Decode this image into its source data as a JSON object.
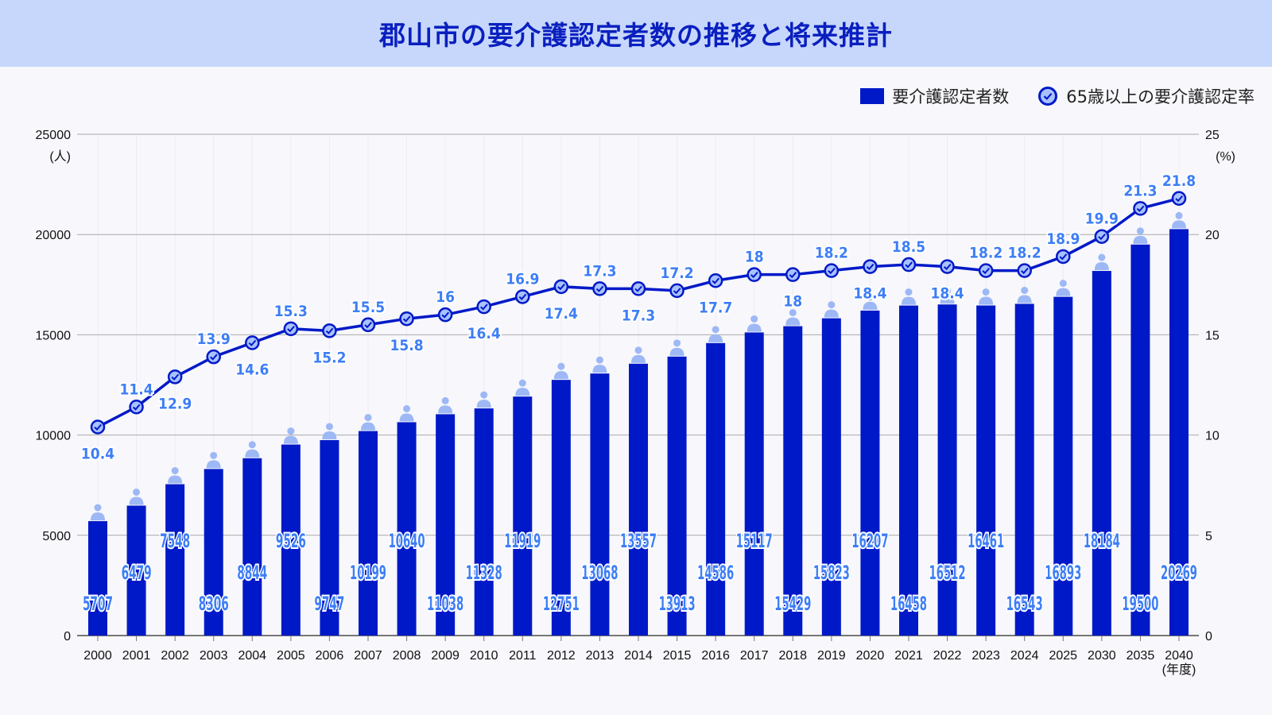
{
  "title": "郡山市の要介護認定者数の推移と将来推計",
  "legend": {
    "bar": "要介護認定者数",
    "line": "65歳以上の要介護認定率"
  },
  "colors": {
    "bar": "#0019c8",
    "line": "#0019c8",
    "marker_fill": "#a9c1ff",
    "label": "#3d7ef6",
    "person_icon": "#9db8f5"
  },
  "chart_data": {
    "type": "bar+line",
    "title": "郡山市の要介護認定者数の推移と将来推計",
    "categories": [
      "2000",
      "2001",
      "2002",
      "2003",
      "2004",
      "2005",
      "2006",
      "2007",
      "2008",
      "2009",
      "2010",
      "2011",
      "2012",
      "2013",
      "2014",
      "2015",
      "2016",
      "2017",
      "2018",
      "2019",
      "2020",
      "2021",
      "2022",
      "2023",
      "2024",
      "2025",
      "2030",
      "2035",
      "2040"
    ],
    "x_unit": "(年度)",
    "left_axis": {
      "unit": "(人)",
      "ylim": [
        0,
        25000
      ],
      "ticks": [
        0,
        5000,
        10000,
        15000,
        20000,
        25000
      ]
    },
    "right_axis": {
      "unit": "(%)",
      "ylim": [
        0,
        25
      ],
      "ticks": [
        0,
        5,
        10,
        15,
        20,
        25
      ]
    },
    "grid": true,
    "legend_position": "top-right",
    "series": [
      {
        "name": "要介護認定者数",
        "type": "bar",
        "axis": "left",
        "values": [
          5707,
          6479,
          7548,
          8306,
          8844,
          9526,
          9747,
          10199,
          10640,
          11038,
          11328,
          11919,
          12751,
          13068,
          13557,
          13913,
          14586,
          15117,
          15429,
          15823,
          16207,
          16458,
          16512,
          16461,
          16543,
          16893,
          18184,
          19500,
          20269
        ]
      },
      {
        "name": "65歳以上の要介護認定率",
        "type": "line",
        "axis": "right",
        "values": [
          10.4,
          11.4,
          12.9,
          13.9,
          14.6,
          15.3,
          15.2,
          15.5,
          15.8,
          16,
          16.4,
          16.9,
          17.4,
          17.3,
          17.3,
          17.2,
          17.7,
          18,
          18,
          18.2,
          18.4,
          18.5,
          18.4,
          18.2,
          18.2,
          18.9,
          19.9,
          21.3,
          21.8
        ]
      }
    ]
  }
}
